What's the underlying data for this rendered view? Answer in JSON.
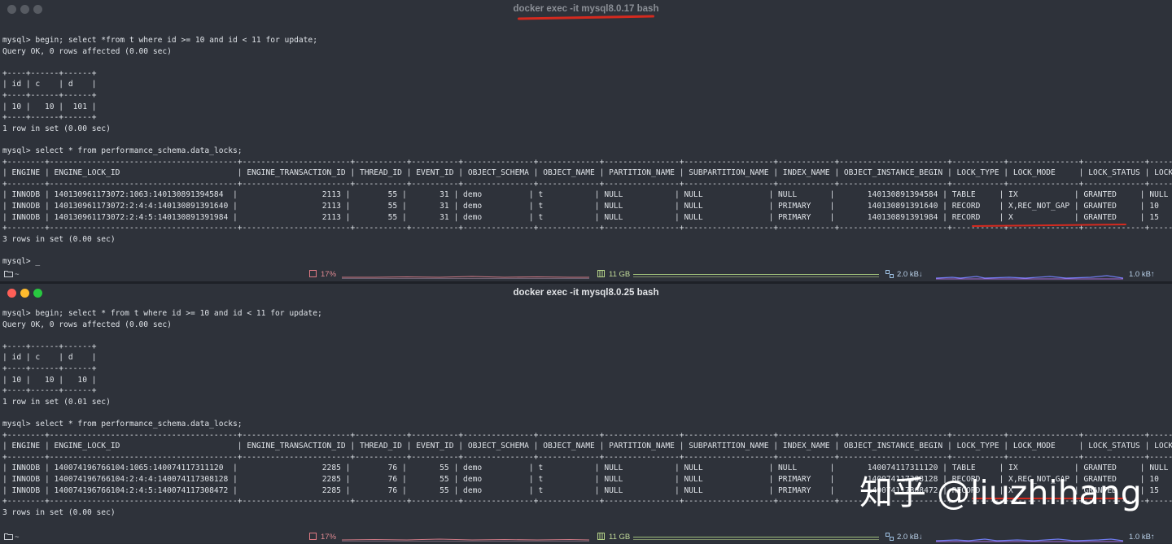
{
  "window1": {
    "title": "docker exec -it mysql8.0.17 bash",
    "terminal_text": "mysql> begin; select *from t where id >= 10 and id < 11 for update;\nQuery OK, 0 rows affected (0.00 sec)\n\n+----+------+------+\n| id | c    | d    |\n+----+------+------+\n| 10 |   10 |  101 |\n+----+------+------+\n1 row in set (0.00 sec)\n\nmysql> select * from performance_schema.data_locks;\n+--------+----------------------------------------+-----------------------+-----------+----------+---------------+-------------+----------------+-------------------+------------+-----------------------+-----------+---------------+-------------+-----------+\n| ENGINE | ENGINE_LOCK_ID                         | ENGINE_TRANSACTION_ID | THREAD_ID | EVENT_ID | OBJECT_SCHEMA | OBJECT_NAME | PARTITION_NAME | SUBPARTITION_NAME | INDEX_NAME | OBJECT_INSTANCE_BEGIN | LOCK_TYPE | LOCK_MODE     | LOCK_STATUS | LOCK_DATA |\n+--------+----------------------------------------+-----------------------+-----------+----------+---------------+-------------+----------------+-------------------+------------+-----------------------+-----------+---------------+-------------+-----------+\n| INNODB | 140130961173072:1063:140130891394584  |                  2113 |        55 |       31 | demo          | t           | NULL           | NULL              | NULL       |       140130891394584 | TABLE     | IX            | GRANTED     | NULL      |\n| INNODB | 140130961173072:2:4:4:140130891391640 |                  2113 |        55 |       31 | demo          | t           | NULL           | NULL              | PRIMARY    |       140130891391640 | RECORD    | X,REC_NOT_GAP | GRANTED     | 10        |\n| INNODB | 140130961173072:2:4:5:140130891391984 |                  2113 |        55 |       31 | demo          | t           | NULL           | NULL              | PRIMARY    |       140130891391984 | RECORD    | X             | GRANTED     | 15        |\n+--------+----------------------------------------+-----------------------+-----------+----------+---------------+-------------+----------------+-------------------+------------+-----------------------+-----------+---------------+-------------+-----------+\n3 rows in set (0.00 sec)\n\nmysql> _",
    "status": {
      "folder": "~",
      "cpu": "17%",
      "mem": "11 GB",
      "down": "2.0 kB↓",
      "up": "1.0 kB↑"
    }
  },
  "window2": {
    "title": "docker exec -it mysql8.0.25 bash",
    "terminal_text": "mysql> begin; select * from t where id >= 10 and id < 11 for update;\nQuery OK, 0 rows affected (0.00 sec)\n\n+----+------+------+\n| id | c    | d    |\n+----+------+------+\n| 10 |   10 |   10 |\n+----+------+------+\n1 row in set (0.01 sec)\n\nmysql> select * from performance_schema.data_locks;\n+--------+----------------------------------------+-----------------------+-----------+----------+---------------+-------------+----------------+-------------------+------------+-----------------------+-----------+---------------+-------------+-----------+\n| ENGINE | ENGINE_LOCK_ID                         | ENGINE_TRANSACTION_ID | THREAD_ID | EVENT_ID | OBJECT_SCHEMA | OBJECT_NAME | PARTITION_NAME | SUBPARTITION_NAME | INDEX_NAME | OBJECT_INSTANCE_BEGIN | LOCK_TYPE | LOCK_MODE     | LOCK_STATUS | LOCK_DATA |\n+--------+----------------------------------------+-----------------------+-----------+----------+---------------+-------------+----------------+-------------------+------------+-----------------------+-----------+---------------+-------------+-----------+\n| INNODB | 140074196766104:1065:140074117311120  |                  2285 |        76 |       55 | demo          | t           | NULL           | NULL              | NULL       |       140074117311120 | TABLE     | IX            | GRANTED     | NULL      |\n| INNODB | 140074196766104:2:4:4:140074117308128 |                  2285 |        76 |       55 | demo          | t           | NULL           | NULL              | PRIMARY    |       140074117308128 | RECORD    | X,REC_NOT_GAP | GRANTED     | 10        |\n| INNODB | 140074196766104:2:4:5:140074117308472 |                  2285 |        76 |       55 | demo          | t           | NULL           | NULL              | PRIMARY    |       140074117308472 | RECORD    | X             | GRANTED     | 15        |\n+--------+----------------------------------------+-----------------------+-----------+----------+---------------+-------------+----------------+-------------------+------------+-----------------------+-----------+---------------+-------------+-----------+\n3 rows in set (0.00 sec)",
    "status": {
      "folder": "~",
      "cpu": "17%",
      "mem": "11 GB",
      "down": "2.0 kB↓",
      "up": "1.0 kB↑"
    }
  },
  "watermark": "知乎 @liuzhihang",
  "colors": {
    "background": "#2e323a",
    "text": "#dfe3e8",
    "underline": "#d42a1f"
  }
}
